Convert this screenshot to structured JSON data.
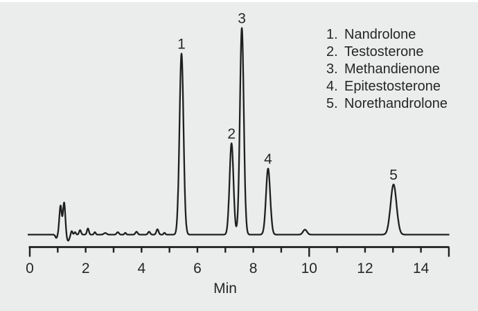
{
  "figure": {
    "background": "#ebecec",
    "top_strip_color": "#ffffff",
    "trace_color": "#1f1f1f",
    "axis_color": "#1f1f1f",
    "text_color": "#262626"
  },
  "chart_data": {
    "type": "line",
    "title": "",
    "xlabel": "Min",
    "ylabel": "",
    "x_unit": "minutes",
    "xlim": [
      0,
      15
    ],
    "grid": false,
    "legend_position": "upper-right",
    "x_ticks": [
      0,
      1,
      2,
      3,
      4,
      5,
      6,
      7,
      8,
      9,
      10,
      11,
      12,
      13,
      14,
      15
    ],
    "x_tick_labels": [
      0,
      2,
      4,
      6,
      8,
      10,
      12,
      14
    ],
    "long_ticks": [
      0,
      10,
      15
    ],
    "peaks": [
      {
        "number": 1,
        "name": "Nandrolone",
        "retention_min": 5.43,
        "rel_height": 87.6,
        "sigma_min": 0.072
      },
      {
        "number": 2,
        "name": "Testosterone",
        "retention_min": 7.22,
        "rel_height": 44.2,
        "sigma_min": 0.07
      },
      {
        "number": 3,
        "name": "Methandienone",
        "retention_min": 7.59,
        "rel_height": 100.0,
        "sigma_min": 0.07
      },
      {
        "number": 4,
        "name": "Epitestosterone",
        "retention_min": 8.53,
        "rel_height": 32.0,
        "sigma_min": 0.075
      },
      {
        "number": 5,
        "name": "Norethandrolone",
        "retention_min": 13.02,
        "rel_height": 24.3,
        "sigma_min": 0.107
      }
    ],
    "baseline_features": [
      {
        "retention_min": 0.95,
        "rel_height": -1.6,
        "sigma_min": 0.035
      },
      {
        "retention_min": 1.1,
        "rel_height": 14.0,
        "sigma_min": 0.042
      },
      {
        "retention_min": 1.23,
        "rel_height": 15.5,
        "sigma_min": 0.042
      },
      {
        "retention_min": 1.37,
        "rel_height": -3.0,
        "sigma_min": 0.05
      },
      {
        "retention_min": 1.5,
        "rel_height": 1.8,
        "sigma_min": 0.03
      },
      {
        "retention_min": 1.62,
        "rel_height": 1.2,
        "sigma_min": 0.03
      },
      {
        "retention_min": 1.8,
        "rel_height": 2.2,
        "sigma_min": 0.035
      },
      {
        "retention_min": 2.08,
        "rel_height": 3.0,
        "sigma_min": 0.035
      },
      {
        "retention_min": 2.33,
        "rel_height": 1.2,
        "sigma_min": 0.03
      },
      {
        "retention_min": 2.7,
        "rel_height": 0.8,
        "sigma_min": 0.05
      },
      {
        "retention_min": 3.15,
        "rel_height": 1.2,
        "sigma_min": 0.04
      },
      {
        "retention_min": 3.42,
        "rel_height": 0.9,
        "sigma_min": 0.03
      },
      {
        "retention_min": 3.82,
        "rel_height": 1.4,
        "sigma_min": 0.04
      },
      {
        "retention_min": 4.27,
        "rel_height": 1.4,
        "sigma_min": 0.04
      },
      {
        "retention_min": 4.57,
        "rel_height": 2.6,
        "sigma_min": 0.04
      },
      {
        "retention_min": 4.82,
        "rel_height": 0.9,
        "sigma_min": 0.03
      },
      {
        "retention_min": 9.85,
        "rel_height": 2.4,
        "sigma_min": 0.07
      }
    ]
  }
}
